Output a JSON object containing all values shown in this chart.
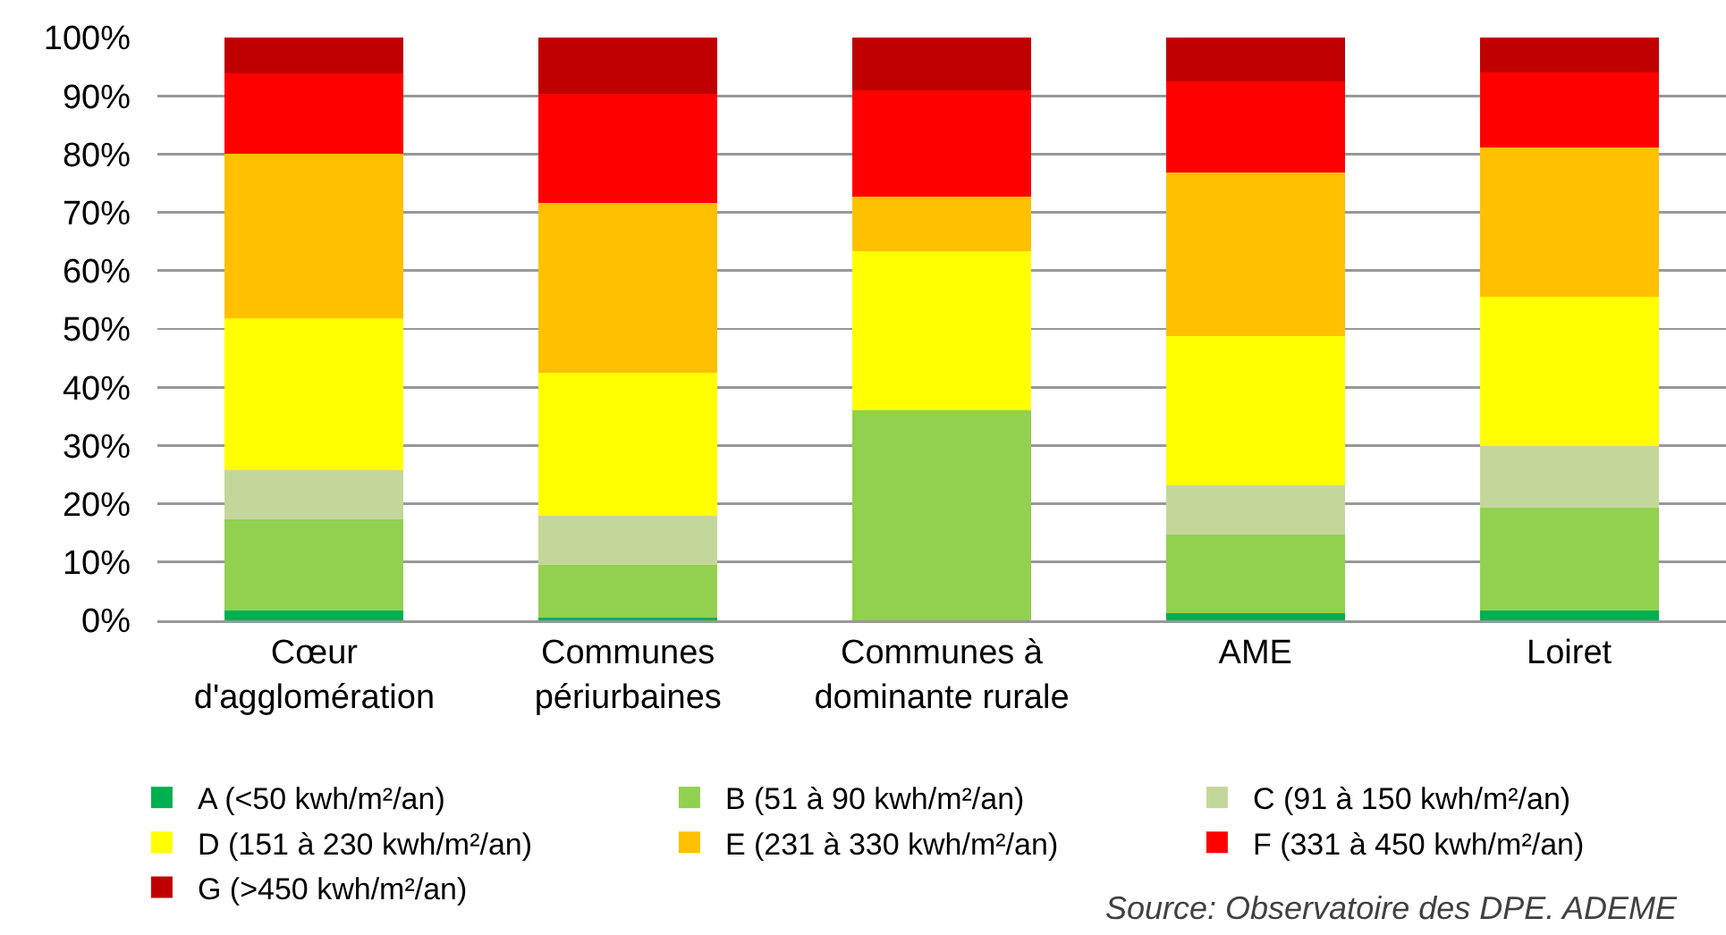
{
  "chart_data": {
    "type": "bar",
    "stacked": true,
    "categories": [
      "Cœur d'agglomération",
      "Communes périurbaines",
      "Communes à dominante rurale",
      "AME",
      "Loiret"
    ],
    "series": [
      {
        "name": "A (<50 kwh/m²/an)",
        "color": "#00b050",
        "values": [
          1.7,
          0.5,
          0,
          1.2,
          1.7
        ]
      },
      {
        "name": "B (51 à 90 kwh/m²/an)",
        "color": "#92d050",
        "values": [
          15.7,
          9.0,
          36.1,
          13.5,
          17.6
        ]
      },
      {
        "name": "C (91 à 150 kwh/m²/an)",
        "color": "#c4d79b",
        "values": [
          8.3,
          8.4,
          0,
          8.4,
          10.6
        ]
      },
      {
        "name": "D (151 à 230 kwh/m²/an)",
        "color": "#ffff00",
        "values": [
          26.1,
          24.6,
          27.3,
          25.7,
          25.6
        ]
      },
      {
        "name": "E (231 à 330 kwh/m²/an)",
        "color": "#ffc000",
        "values": [
          28.2,
          29.1,
          9.3,
          28.0,
          25.6
        ]
      },
      {
        "name": "F (331 à 450 kwh/m²/an)",
        "color": "#ff0000",
        "values": [
          13.9,
          18.7,
          18.2,
          15.7,
          12.9
        ]
      },
      {
        "name": "G (>450 kwh/m²/an)",
        "color": "#c00000",
        "values": [
          6.1,
          9.7,
          9.1,
          7.5,
          6.0
        ]
      }
    ],
    "ylim": [
      0,
      100
    ],
    "yticks": [
      {
        "value": 0,
        "label": "0%"
      },
      {
        "value": 10,
        "label": "10%"
      },
      {
        "value": 20,
        "label": "20%"
      },
      {
        "value": 30,
        "label": "30%"
      },
      {
        "value": 40,
        "label": "40%"
      },
      {
        "value": 50,
        "label": "50%"
      },
      {
        "value": 60,
        "label": "60%"
      },
      {
        "value": 70,
        "label": "70%"
      },
      {
        "value": 80,
        "label": "80%"
      },
      {
        "value": 90,
        "label": "90%"
      },
      {
        "value": 100,
        "label": "100%"
      }
    ],
    "grid": "y",
    "legend": "bottom",
    "annotations": [
      "Source: Observatoire des DPE. ADEME"
    ]
  }
}
